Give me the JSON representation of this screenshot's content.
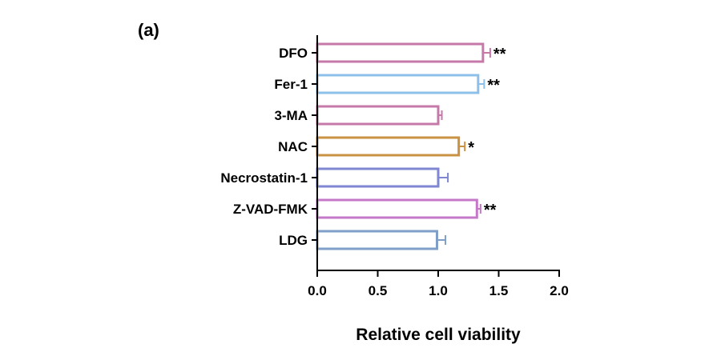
{
  "chart_data": {
    "type": "bar",
    "orientation": "horizontal",
    "panel_label": "(a)",
    "xlabel": "Relative cell viability",
    "ylabel": "",
    "xlim": [
      0,
      2.0
    ],
    "xticks": [
      "0.0",
      "0.5",
      "1.0",
      "1.5",
      "2.0"
    ],
    "grid": false,
    "categories": [
      "DFO",
      "Fer-1",
      "3-MA",
      "NAC",
      "Necrostatin-1",
      "Z-VAD-FMK",
      "LDG"
    ],
    "values": [
      1.37,
      1.33,
      1.0,
      1.17,
      1.0,
      1.32,
      0.99
    ],
    "errors": [
      0.06,
      0.05,
      0.03,
      0.05,
      0.08,
      0.03,
      0.07
    ],
    "significance": [
      "**",
      "**",
      "",
      "*",
      "",
      "**",
      ""
    ],
    "colors": [
      "#c678a8",
      "#8cc0ea",
      "#c678a8",
      "#c99142",
      "#7f86d2",
      "#c678c8",
      "#7f9fc8"
    ]
  }
}
